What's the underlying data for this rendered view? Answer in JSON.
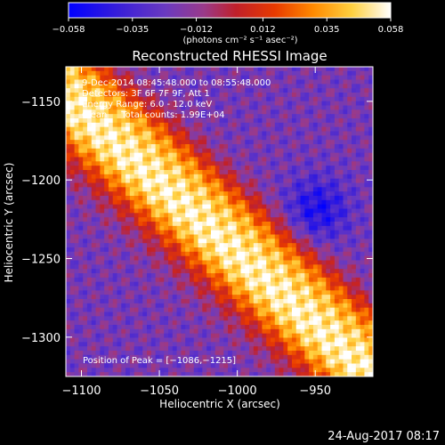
{
  "chart_data": {
    "type": "heatmap",
    "title": "Reconstructed RHESSI Image",
    "xlabel": "Heliocentric X (arcsec)",
    "ylabel": "Heliocentric Y (arcsec)",
    "xlim": [
      -1110,
      -913
    ],
    "ylim": [
      -1325,
      -1128
    ],
    "x_ticks": [
      -1100,
      -1050,
      -1000,
      -950
    ],
    "x_tick_labels": [
      "−1100",
      "−1050",
      "−1000",
      "−950"
    ],
    "y_ticks": [
      -1150,
      -1200,
      -1250,
      -1300
    ],
    "y_tick_labels": [
      "−1150",
      "−1200",
      "−1250",
      "−1300"
    ],
    "colorbar": {
      "range": [
        -0.058,
        0.058
      ],
      "ticks": [
        -0.058,
        -0.035,
        -0.012,
        0.012,
        0.035,
        0.058
      ],
      "tick_labels": [
        "−0.058",
        "−0.035",
        "−0.012",
        "0.012",
        "0.035",
        "0.058"
      ],
      "unit_label": "(photons cm⁻² s⁻¹ asec⁻²)",
      "colors": [
        "#0000ff",
        "#3a1fd8",
        "#6a3ac0",
        "#9a3a8a",
        "#c0202a",
        "#e83a00",
        "#ff8a00",
        "#ffd040",
        "#ffffff"
      ]
    },
    "annotations": [
      "9-Dec-2014 08:45:48.000 to 08:55:48.000",
      "Detectors: 3F 6F 7F 9F, Att 1",
      "Energy Range: 6.0 - 12.0 keV",
      "Clean     Total counts: 1.99E+04"
    ],
    "peak_label": "Position of Peak = [−1086,−1215]",
    "peak": [
      -1086,
      -1215
    ],
    "ridge_direction": "upper-left to lower-right diagonal band",
    "image_shape": [
      72,
      72
    ]
  },
  "footer": {
    "timestamp": "24-Aug-2017 08:17"
  }
}
